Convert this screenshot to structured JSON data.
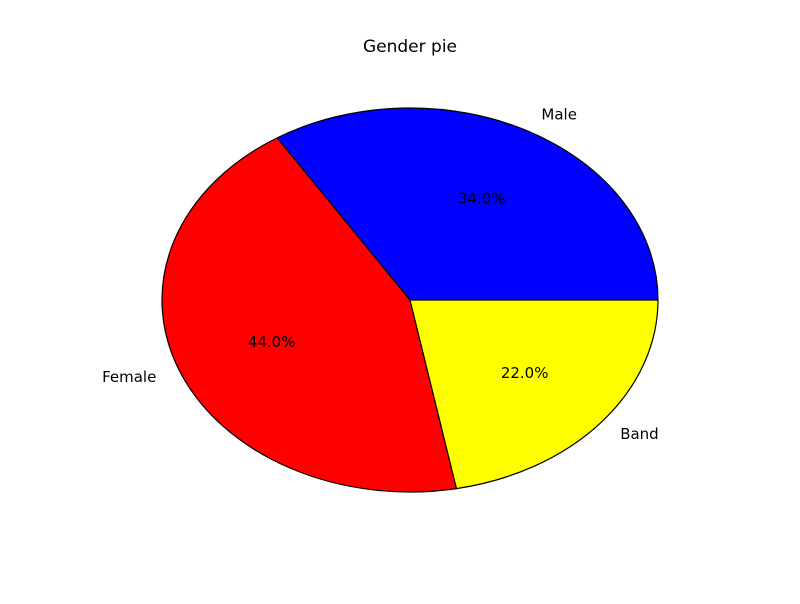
{
  "chart_data": {
    "type": "pie",
    "title": "Gender pie",
    "slices": [
      {
        "label": "Male",
        "value": 34.0,
        "percent_label": "34.0%",
        "color": "#0000ff"
      },
      {
        "label": "Female",
        "value": 44.0,
        "percent_label": "44.0%",
        "color": "#ff0000"
      },
      {
        "label": "Band",
        "value": 22.0,
        "percent_label": "22.0%",
        "color": "#ffff00"
      }
    ],
    "start_angle_deg": 0,
    "direction": "counterclockwise",
    "edge_color": "#000000"
  }
}
